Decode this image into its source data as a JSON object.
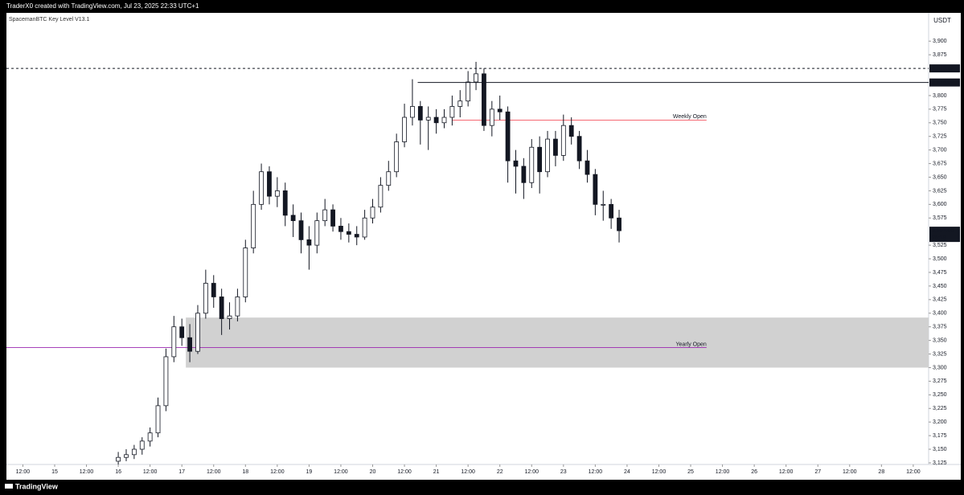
{
  "header": {
    "caption": "TraderX0 created with TradingView.com, Jul 23, 2025 22:33 UTC+1",
    "brand": "TradingView"
  },
  "chart_data": {
    "type": "candlestick",
    "indicator": "SpacemanBTC Key Level V13.1",
    "currency": "USDT",
    "color": "#131722",
    "xlim": [
      -18.2,
      329.8
    ],
    "ylim": [
      3122,
      3952
    ],
    "xticks": [
      {
        "value": -12,
        "label": "12:00"
      },
      {
        "value": 0,
        "label": "15"
      },
      {
        "value": 12,
        "label": "12:00"
      },
      {
        "value": 24,
        "label": "16"
      },
      {
        "value": 36,
        "label": "12:00"
      },
      {
        "value": 48,
        "label": "17"
      },
      {
        "value": 60,
        "label": "12:00"
      },
      {
        "value": 72,
        "label": "18"
      },
      {
        "value": 84,
        "label": "12:00"
      },
      {
        "value": 96,
        "label": "19"
      },
      {
        "value": 108,
        "label": "12:00"
      },
      {
        "value": 120,
        "label": "20"
      },
      {
        "value": 132,
        "label": "12:00"
      },
      {
        "value": 144,
        "label": "21"
      },
      {
        "value": 156,
        "label": "12:00"
      },
      {
        "value": 168,
        "label": "22"
      },
      {
        "value": 180,
        "label": "12:00"
      },
      {
        "value": 192,
        "label": "23"
      },
      {
        "value": 204,
        "label": "12:00"
      },
      {
        "value": 216,
        "label": "24"
      },
      {
        "value": 228,
        "label": "12:00"
      },
      {
        "value": 240,
        "label": "25"
      },
      {
        "value": 252,
        "label": "12:00"
      },
      {
        "value": 264,
        "label": "26"
      },
      {
        "value": 276,
        "label": "12:00"
      },
      {
        "value": 288,
        "label": "27"
      },
      {
        "value": 300,
        "label": "12:00"
      },
      {
        "value": 312,
        "label": "28"
      },
      {
        "value": 324,
        "label": "12:00"
      }
    ],
    "yticks": [
      {
        "value": 3125,
        "label": "3,125"
      },
      {
        "value": 3150,
        "label": "3,150"
      },
      {
        "value": 3175,
        "label": "3,175"
      },
      {
        "value": 3200,
        "label": "3,200"
      },
      {
        "value": 3225,
        "label": "3,225"
      },
      {
        "value": 3250,
        "label": "3,250"
      },
      {
        "value": 3275,
        "label": "3,275"
      },
      {
        "value": 3300,
        "label": "3,300"
      },
      {
        "value": 3325,
        "label": "3,325"
      },
      {
        "value": 3350,
        "label": "3,350"
      },
      {
        "value": 3375,
        "label": "3,375"
      },
      {
        "value": 3400,
        "label": "3,400"
      },
      {
        "value": 3425,
        "label": "3,425"
      },
      {
        "value": 3450,
        "label": "3,450"
      },
      {
        "value": 3475,
        "label": "3,475"
      },
      {
        "value": 3500,
        "label": "3,500"
      },
      {
        "value": 3525,
        "label": "3,525"
      },
      {
        "value": 3575,
        "label": "3,575"
      },
      {
        "value": 3600,
        "label": "3,600"
      },
      {
        "value": 3625,
        "label": "3,625"
      },
      {
        "value": 3650,
        "label": "3,650"
      },
      {
        "value": 3675,
        "label": "3,675"
      },
      {
        "value": 3700,
        "label": "3,700"
      },
      {
        "value": 3725,
        "label": "3,725"
      },
      {
        "value": 3750,
        "label": "3,750"
      },
      {
        "value": 3775,
        "label": "3,775"
      },
      {
        "value": 3800,
        "label": "3,800"
      },
      {
        "value": 3875,
        "label": "3,875"
      },
      {
        "value": 3900,
        "label": "3,900"
      }
    ],
    "x": [
      24,
      27,
      30,
      33,
      36,
      39,
      42,
      45,
      48,
      51,
      54,
      57,
      60,
      63,
      66,
      69,
      72,
      75,
      78,
      81,
      84,
      87,
      90,
      93,
      96,
      99,
      102,
      105,
      108,
      111,
      114,
      117,
      120,
      123,
      126,
      129,
      132,
      135,
      138,
      141,
      144,
      147,
      150,
      153,
      156,
      159,
      162,
      165,
      168,
      171,
      174,
      177,
      180,
      183,
      186,
      189,
      192,
      195,
      198,
      201,
      204,
      207,
      210,
      213
    ],
    "candles": [
      [
        3128,
        3145,
        3122,
        3135
      ],
      [
        3135,
        3150,
        3128,
        3140
      ],
      [
        3140,
        3158,
        3132,
        3150
      ],
      [
        3150,
        3172,
        3140,
        3165
      ],
      [
        3165,
        3190,
        3155,
        3180
      ],
      [
        3180,
        3245,
        3172,
        3230
      ],
      [
        3230,
        3335,
        3220,
        3320
      ],
      [
        3320,
        3395,
        3310,
        3375
      ],
      [
        3375,
        3390,
        3340,
        3355
      ],
      [
        3355,
        3380,
        3310,
        3330
      ],
      [
        3330,
        3415,
        3325,
        3400
      ],
      [
        3400,
        3480,
        3390,
        3455
      ],
      [
        3455,
        3470,
        3410,
        3430
      ],
      [
        3430,
        3445,
        3360,
        3390
      ],
      [
        3390,
        3420,
        3370,
        3395
      ],
      [
        3395,
        3445,
        3385,
        3430
      ],
      [
        3430,
        3535,
        3420,
        3520
      ],
      [
        3520,
        3625,
        3510,
        3600
      ],
      [
        3600,
        3675,
        3590,
        3660
      ],
      [
        3660,
        3670,
        3600,
        3615
      ],
      [
        3615,
        3650,
        3595,
        3625
      ],
      [
        3625,
        3640,
        3560,
        3580
      ],
      [
        3580,
        3600,
        3540,
        3570
      ],
      [
        3570,
        3585,
        3510,
        3535
      ],
      [
        3535,
        3560,
        3480,
        3525
      ],
      [
        3525,
        3585,
        3510,
        3570
      ],
      [
        3570,
        3610,
        3560,
        3590
      ],
      [
        3590,
        3600,
        3550,
        3560
      ],
      [
        3560,
        3575,
        3535,
        3550
      ],
      [
        3550,
        3565,
        3530,
        3545
      ],
      [
        3545,
        3560,
        3525,
        3540
      ],
      [
        3540,
        3590,
        3535,
        3575
      ],
      [
        3575,
        3610,
        3565,
        3595
      ],
      [
        3595,
        3650,
        3585,
        3635
      ],
      [
        3635,
        3680,
        3625,
        3660
      ],
      [
        3660,
        3730,
        3650,
        3715
      ],
      [
        3715,
        3785,
        3705,
        3760
      ],
      [
        3760,
        3830,
        3745,
        3780
      ],
      [
        3780,
        3790,
        3710,
        3755
      ],
      [
        3755,
        3780,
        3700,
        3760
      ],
      [
        3760,
        3775,
        3730,
        3750
      ],
      [
        3750,
        3775,
        3740,
        3760
      ],
      [
        3760,
        3800,
        3745,
        3780
      ],
      [
        3780,
        3810,
        3760,
        3790
      ],
      [
        3790,
        3845,
        3780,
        3825
      ],
      [
        3825,
        3862,
        3810,
        3840
      ],
      [
        3840,
        3850,
        3735,
        3745
      ],
      [
        3745,
        3790,
        3725,
        3775
      ],
      [
        3775,
        3800,
        3755,
        3770
      ],
      [
        3770,
        3780,
        3640,
        3680
      ],
      [
        3680,
        3700,
        3620,
        3670
      ],
      [
        3670,
        3685,
        3610,
        3640
      ],
      [
        3640,
        3720,
        3630,
        3705
      ],
      [
        3705,
        3725,
        3620,
        3660
      ],
      [
        3660,
        3735,
        3650,
        3720
      ],
      [
        3720,
        3735,
        3670,
        3690
      ],
      [
        3690,
        3765,
        3680,
        3745
      ],
      [
        3745,
        3760,
        3710,
        3725
      ],
      [
        3725,
        3735,
        3665,
        3680
      ],
      [
        3680,
        3700,
        3640,
        3655
      ],
      [
        3655,
        3665,
        3580,
        3600
      ],
      [
        3600,
        3625,
        3570,
        3600
      ],
      [
        3600,
        3610,
        3555,
        3575
      ],
      [
        3575,
        3590,
        3530,
        3551.6
      ]
    ],
    "levels": [
      {
        "value": 3849.92,
        "label": "3,849.92",
        "dashed": true,
        "color": "#131722",
        "x_start": -18.2
      },
      {
        "value": 3824.02,
        "label": "3,824.02",
        "dashed": false,
        "color": "#131722",
        "x_start": 137
      }
    ],
    "last_price": {
      "value": 3551.6,
      "label": "3,551.60",
      "countdown": "26:18"
    },
    "key_levels": [
      {
        "value": 3755,
        "label": "Weekly Open",
        "color": "#f23645",
        "x_start": 150,
        "x_end": 246
      },
      {
        "value": 3337,
        "label": "Yearly Open",
        "color": "#9c27b0",
        "x_start": -18.2,
        "x_end": 246
      }
    ],
    "zone": {
      "low": 3300,
      "high": 3392,
      "x_start": 49.5,
      "color": "#d1d1d1"
    }
  }
}
